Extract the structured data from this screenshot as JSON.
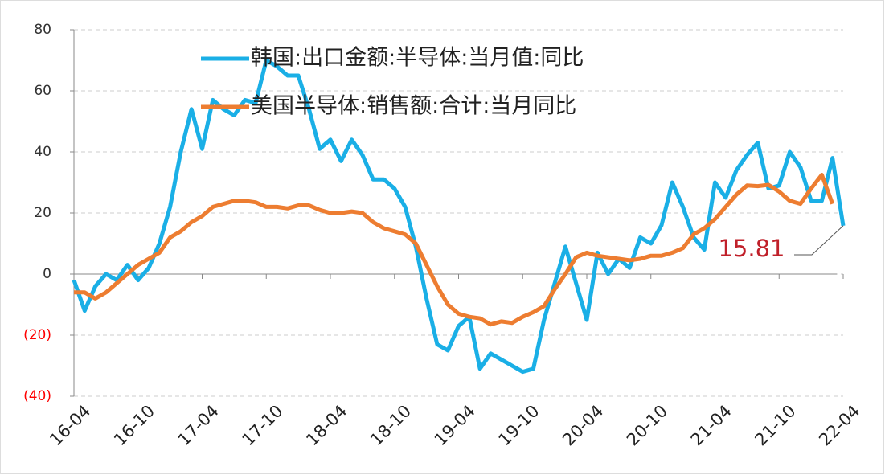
{
  "chart_data": {
    "type": "line",
    "categories": [
      "16-04",
      null,
      null,
      null,
      null,
      null,
      "16-10",
      null,
      null,
      null,
      null,
      null,
      "17-04",
      null,
      null,
      null,
      null,
      null,
      "17-10",
      null,
      null,
      null,
      null,
      null,
      "18-04",
      null,
      null,
      null,
      null,
      null,
      "18-10",
      null,
      null,
      null,
      null,
      null,
      "19-04",
      null,
      null,
      null,
      null,
      null,
      "19-10",
      null,
      null,
      null,
      null,
      null,
      "20-04",
      null,
      null,
      null,
      null,
      null,
      "20-10",
      null,
      null,
      null,
      null,
      null,
      "21-04",
      null,
      null,
      null,
      null,
      null,
      "21-10",
      null,
      null,
      null,
      null,
      null,
      "22-04"
    ],
    "series": [
      {
        "name": "韩国:出口金额:半导体:当月值:同比",
        "color": "#1aafe6",
        "values": [
          -2,
          -12,
          -4,
          0,
          -2,
          3,
          -2,
          2,
          10,
          22,
          40,
          54,
          41,
          57,
          54,
          52,
          57,
          56,
          70,
          68,
          65,
          65,
          54,
          41,
          44,
          37,
          44,
          39,
          31,
          31,
          28,
          22,
          9,
          -8,
          -23,
          -25,
          -17,
          -14,
          -31,
          -26,
          -28,
          -30,
          -32,
          -31,
          -15,
          -3,
          9,
          -3,
          -15,
          7,
          0,
          5,
          2,
          12,
          10,
          16,
          30,
          22,
          12,
          8,
          30,
          25,
          34,
          39,
          43,
          28,
          29,
          40,
          35,
          24,
          24,
          38,
          15.81
        ]
      },
      {
        "name": "美国半导体:销售额:合计:当月同比",
        "color": "#ed7d31",
        "values": [
          -6,
          -6,
          -8,
          -6,
          -3,
          0,
          3,
          5,
          7,
          12,
          14,
          17,
          19,
          22,
          23,
          24,
          24,
          23.5,
          22,
          22,
          21.5,
          22.5,
          22.5,
          21,
          20,
          20,
          20.5,
          20,
          17,
          15,
          14,
          13,
          10,
          3,
          -4,
          -10,
          -13,
          -14,
          -14.5,
          -16.5,
          -15.5,
          -16,
          -14,
          -12.5,
          -10.5,
          -5,
          0,
          5.5,
          7,
          6,
          5.5,
          5,
          4.5,
          5,
          6,
          6,
          7,
          8.5,
          13,
          15,
          18,
          22,
          26,
          29,
          28.8,
          29.2,
          27,
          24,
          23,
          28,
          32.5,
          23,
          null
        ]
      }
    ],
    "ylim": [
      -40,
      80
    ],
    "yticks": [
      80,
      60,
      40,
      20,
      0,
      {
        "value": -20,
        "label": "(20)"
      },
      {
        "value": -40,
        "label": "(40)"
      }
    ],
    "negative_tick_color": "#ff0000",
    "grid": true,
    "legend": "top",
    "annotation": {
      "text": "15.81",
      "color": "#c0202a"
    }
  }
}
